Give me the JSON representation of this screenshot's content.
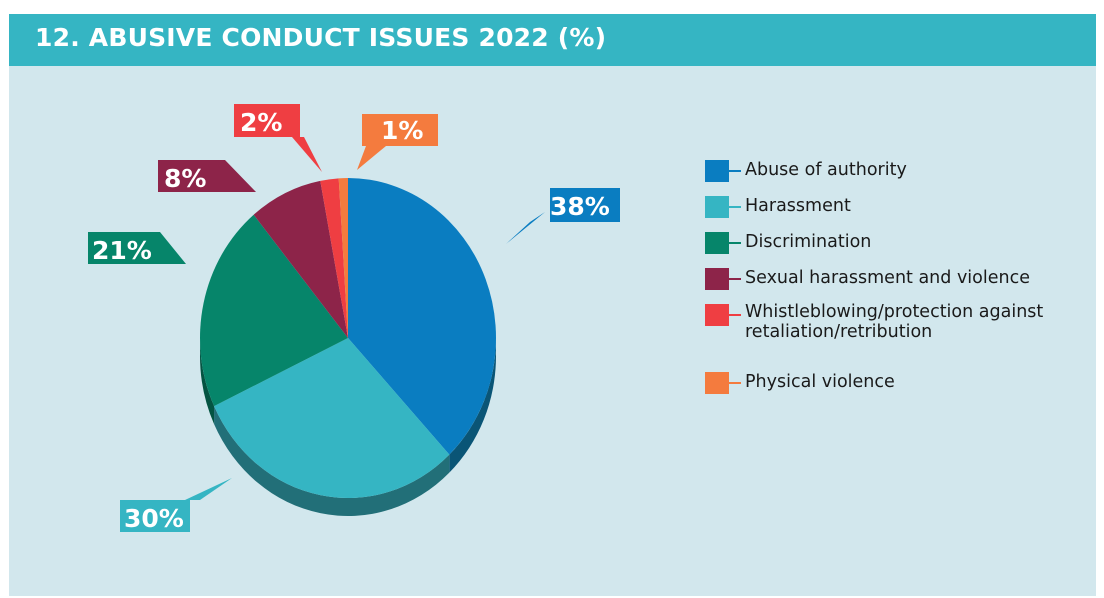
{
  "title": "12. ABUSIVE CONDUCT ISSUES 2022 (%)",
  "chart_data": {
    "type": "pie",
    "title": "12. ABUSIVE CONDUCT ISSUES 2022 (%)",
    "legend_position": "right",
    "slices": [
      {
        "name": "Abuse of authority",
        "value": 38,
        "label": "38%",
        "color": "#0a7dc1",
        "side_color": "#0a5576"
      },
      {
        "name": "Harassment",
        "value": 30,
        "label": "30%",
        "color": "#35b5c3",
        "side_color": "#226f78"
      },
      {
        "name": "Discrimination",
        "value": 21,
        "label": "21%",
        "color": "#06856a",
        "side_color": "#045442"
      },
      {
        "name": "Sexual harassment and violence",
        "value": 8,
        "label": "8%",
        "color": "#8d2449",
        "side_color": "#5a162e"
      },
      {
        "name": "Whistleblowing/protection against retaliation/retribution",
        "value": 2,
        "label": "2%",
        "color": "#ef3e42",
        "side_color": "#9e2426"
      },
      {
        "name": "Physical violence",
        "value": 1,
        "label": "1%",
        "color": "#f47b3e",
        "side_color": "#a04f26"
      }
    ]
  }
}
